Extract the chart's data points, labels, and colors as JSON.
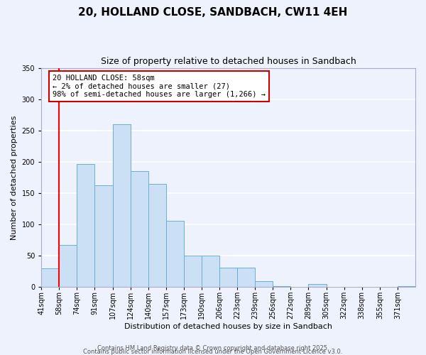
{
  "title": "20, HOLLAND CLOSE, SANDBACH, CW11 4EH",
  "subtitle": "Size of property relative to detached houses in Sandbach",
  "xlabel": "Distribution of detached houses by size in Sandbach",
  "ylabel": "Number of detached properties",
  "bin_labels": [
    "41sqm",
    "58sqm",
    "74sqm",
    "91sqm",
    "107sqm",
    "124sqm",
    "140sqm",
    "157sqm",
    "173sqm",
    "190sqm",
    "206sqm",
    "223sqm",
    "239sqm",
    "256sqm",
    "272sqm",
    "289sqm",
    "305sqm",
    "322sqm",
    "338sqm",
    "355sqm",
    "371sqm"
  ],
  "bar_values": [
    30,
    67,
    197,
    163,
    260,
    185,
    165,
    106,
    50,
    50,
    31,
    31,
    10,
    2,
    0,
    5,
    0,
    0,
    0,
    0,
    2
  ],
  "bar_color": "#cce0f5",
  "bar_edge_color": "#6aaed6",
  "ylim": [
    0,
    350
  ],
  "yticks": [
    0,
    50,
    100,
    150,
    200,
    250,
    300,
    350
  ],
  "red_line_x": 1.0,
  "annotation_title": "20 HOLLAND CLOSE: 58sqm",
  "annotation_line1": "← 2% of detached houses are smaller (27)",
  "annotation_line2": "98% of semi-detached houses are larger (1,266) →",
  "annotation_box_facecolor": "#ffffff",
  "annotation_box_edgecolor": "#cc0000",
  "footer_line1": "Contains HM Land Registry data © Crown copyright and database right 2025.",
  "footer_line2": "Contains public sector information licensed under the Open Government Licence v3.0.",
  "background_color": "#eef2fc",
  "plot_bg_color": "#eef2fc",
  "grid_color": "#ffffff",
  "title_fontsize": 11,
  "subtitle_fontsize": 9,
  "axis_label_fontsize": 8,
  "tick_fontsize": 7,
  "footer_fontsize": 6
}
